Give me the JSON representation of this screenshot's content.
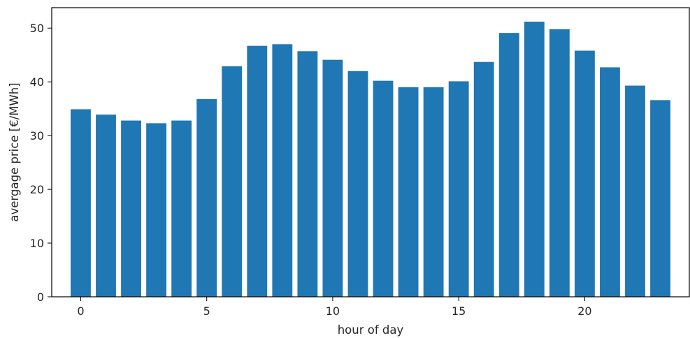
{
  "chart_data": {
    "type": "bar",
    "xlabel": "hour of day",
    "ylabel": "avergage price [€/MWh]",
    "x": [
      0,
      1,
      2,
      3,
      4,
      5,
      6,
      7,
      8,
      9,
      10,
      11,
      12,
      13,
      14,
      15,
      16,
      17,
      18,
      19,
      20,
      21,
      22,
      23
    ],
    "values": [
      34.9,
      33.9,
      32.8,
      32.3,
      32.8,
      36.8,
      42.9,
      46.7,
      47.0,
      45.7,
      44.1,
      42.0,
      40.2,
      39.0,
      39.0,
      40.1,
      43.7,
      49.1,
      51.2,
      49.8,
      45.8,
      42.7,
      39.3,
      36.6
    ],
    "xticks": [
      0,
      5,
      10,
      15,
      20
    ],
    "yticks": [
      0,
      10,
      20,
      30,
      40,
      50
    ],
    "xlim": [
      -1.15,
      24.15
    ],
    "ylim": [
      0,
      53.8
    ],
    "bar_width": 0.8,
    "grid": false,
    "colors": {
      "bar": "#1f77b4",
      "axis": "#000000",
      "text": "#262626"
    }
  }
}
